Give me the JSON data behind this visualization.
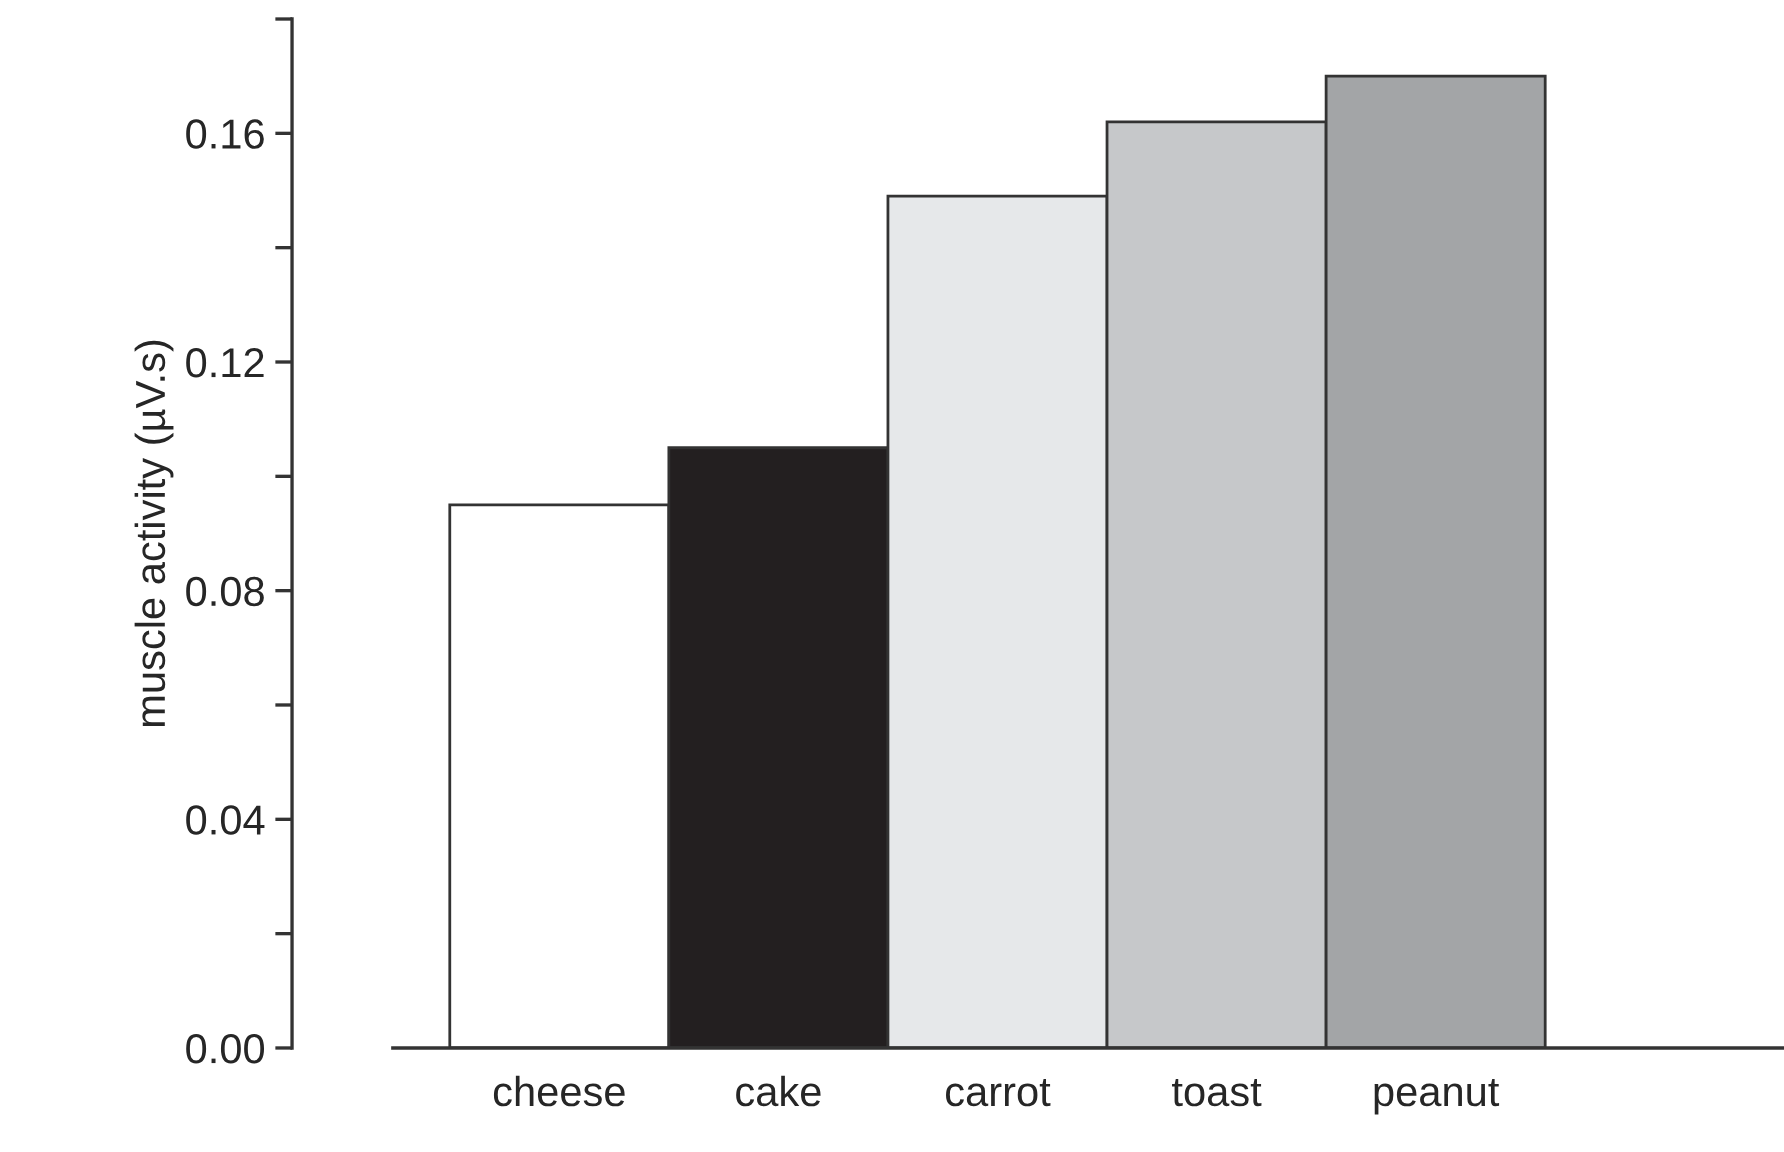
{
  "chart_data": {
    "type": "bar",
    "ylabel": "muscle activity (µV.s)",
    "categories": [
      "cheese",
      "cake",
      "carrot",
      "toast",
      "peanut"
    ],
    "values": [
      0.095,
      0.105,
      0.149,
      0.162,
      0.17
    ],
    "colors": [
      "#ffffff",
      "#231f20",
      "#e6e8ea",
      "#c6c8ca",
      "#a3a5a7"
    ],
    "ylim": [
      0,
      0.18
    ],
    "yticks": [
      {
        "value": 0,
        "label": "0.00"
      },
      {
        "value": 0.04,
        "label": "0.04"
      },
      {
        "value": 0.08,
        "label": "0.08"
      },
      {
        "value": 0.12,
        "label": "0.12"
      },
      {
        "value": 0.16,
        "label": "0.16"
      }
    ],
    "grid": false
  }
}
